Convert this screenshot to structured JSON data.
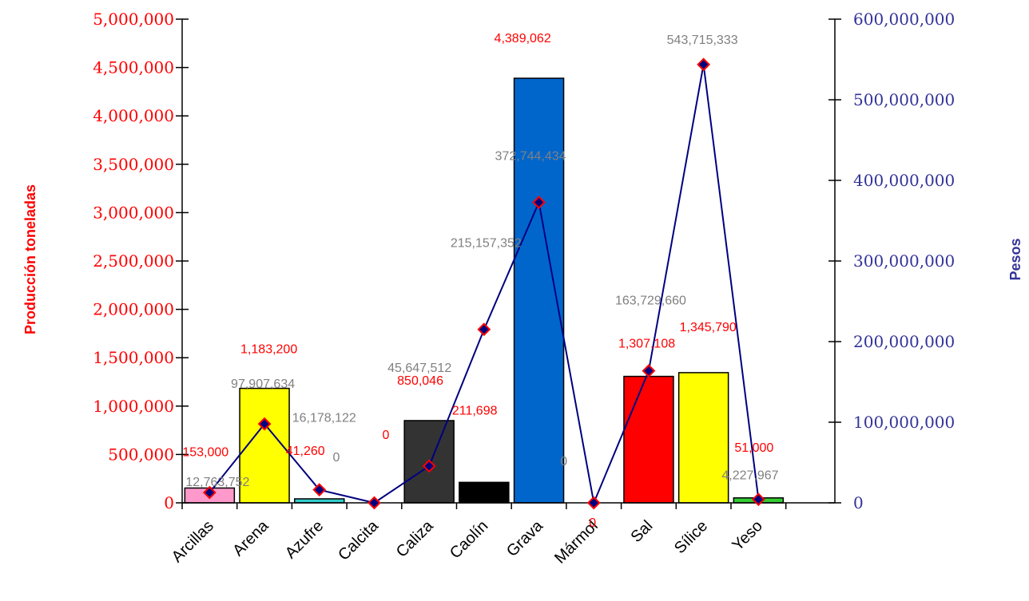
{
  "chart_data": {
    "type": "bar",
    "categories": [
      "Arcillas",
      "Arena",
      "Azufre",
      "Calcita",
      "Caliza",
      "Caolín",
      "Grava",
      "Mármol",
      "Sal",
      "Sílice",
      "Yeso"
    ],
    "series": [
      {
        "axis": "left",
        "type": "bar",
        "values": [
          153000,
          1183200,
          41260,
          0,
          850046,
          211698,
          4389062,
          0,
          1307108,
          1345790,
          51000
        ],
        "labels": [
          "153,000",
          "1,183,200",
          "41,260",
          "0",
          "850,046",
          "211,698",
          "4,389,062",
          "0",
          "1,307,108",
          "1,345,790",
          "51,000"
        ],
        "colors": [
          "#ff99cc",
          "#ffff00",
          "#33cccc",
          "#ffffff",
          "#333333",
          "#000000",
          "#0066cc",
          "#ffffff",
          "#ff0000",
          "#ffff00",
          "#33cc33"
        ]
      },
      {
        "axis": "right",
        "type": "line",
        "values": [
          12763752,
          97907634,
          16178122,
          0,
          45647512,
          215157352,
          372744434,
          0,
          163729660,
          543715333,
          4227967
        ],
        "labels": [
          "12,763,752",
          "97,907,634",
          "16,178,122",
          "0",
          "45,647,512",
          "215,157,352",
          "372,744,434",
          "0",
          "163,729,660",
          "543,715,333",
          "4,227,967"
        ],
        "line_color": "#000080",
        "marker_color": "#ff0000"
      }
    ],
    "ylabel": "Producción toneladas",
    "y2label": "Pesos",
    "ylim": [
      0,
      5000000
    ],
    "y2lim": [
      0,
      600000000
    ],
    "yticks": [
      "0",
      "500,000",
      "1,000,000",
      "1,500,000",
      "2,000,000",
      "2,500,000",
      "3,000,000",
      "3,500,000",
      "4,000,000",
      "4,500,000",
      "5,000,000"
    ],
    "y2ticks": [
      "0",
      "100,000,000",
      "200,000,000",
      "300,000,000",
      "400,000,000",
      "500,000,000",
      "600,000,000"
    ],
    "colors": {
      "left_axis_text": "#ff0000",
      "right_axis_text": "#333399",
      "line_label_text": "#808080"
    },
    "grid": false,
    "legend": "none"
  }
}
